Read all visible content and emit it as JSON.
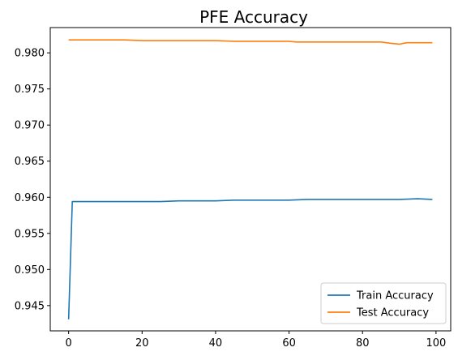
{
  "chart_data": {
    "type": "line",
    "title": "PFE Accuracy",
    "xlabel": "",
    "ylabel": "",
    "xlim": [
      -5,
      104
    ],
    "ylim": [
      0.9415,
      0.9835
    ],
    "x_ticks": [
      0,
      20,
      40,
      60,
      80,
      100
    ],
    "y_ticks": [
      0.945,
      0.95,
      0.955,
      0.96,
      0.965,
      0.97,
      0.975,
      0.98
    ],
    "y_tick_labels": [
      "0.945",
      "0.950",
      "0.955",
      "0.960",
      "0.965",
      "0.970",
      "0.975",
      "0.980"
    ],
    "x_tick_labels": [
      "0",
      "20",
      "40",
      "60",
      "80",
      "100"
    ],
    "grid": false,
    "legend_position": "lower-right",
    "series": [
      {
        "name": "Train Accuracy",
        "color": "#1f77b4",
        "x": [
          0,
          1,
          5,
          10,
          15,
          20,
          25,
          30,
          35,
          40,
          45,
          50,
          55,
          60,
          65,
          70,
          75,
          80,
          85,
          90,
          95,
          99
        ],
        "y": [
          0.9431,
          0.9594,
          0.9594,
          0.9594,
          0.9594,
          0.9594,
          0.9594,
          0.9595,
          0.9595,
          0.9595,
          0.9596,
          0.9596,
          0.9596,
          0.9596,
          0.9597,
          0.9597,
          0.9597,
          0.9597,
          0.9597,
          0.9597,
          0.9598,
          0.9597
        ]
      },
      {
        "name": "Test Accuracy",
        "color": "#ff7f0e",
        "x": [
          0,
          5,
          10,
          15,
          20,
          25,
          30,
          35,
          40,
          45,
          50,
          55,
          60,
          62,
          65,
          70,
          75,
          80,
          85,
          88,
          90,
          92,
          95,
          99
        ],
        "y": [
          0.9818,
          0.9818,
          0.9818,
          0.9818,
          0.9817,
          0.9817,
          0.9817,
          0.9817,
          0.9817,
          0.9816,
          0.9816,
          0.9816,
          0.9816,
          0.9815,
          0.9815,
          0.9815,
          0.9815,
          0.9815,
          0.9815,
          0.9813,
          0.9812,
          0.9814,
          0.9814,
          0.9814
        ]
      }
    ]
  }
}
